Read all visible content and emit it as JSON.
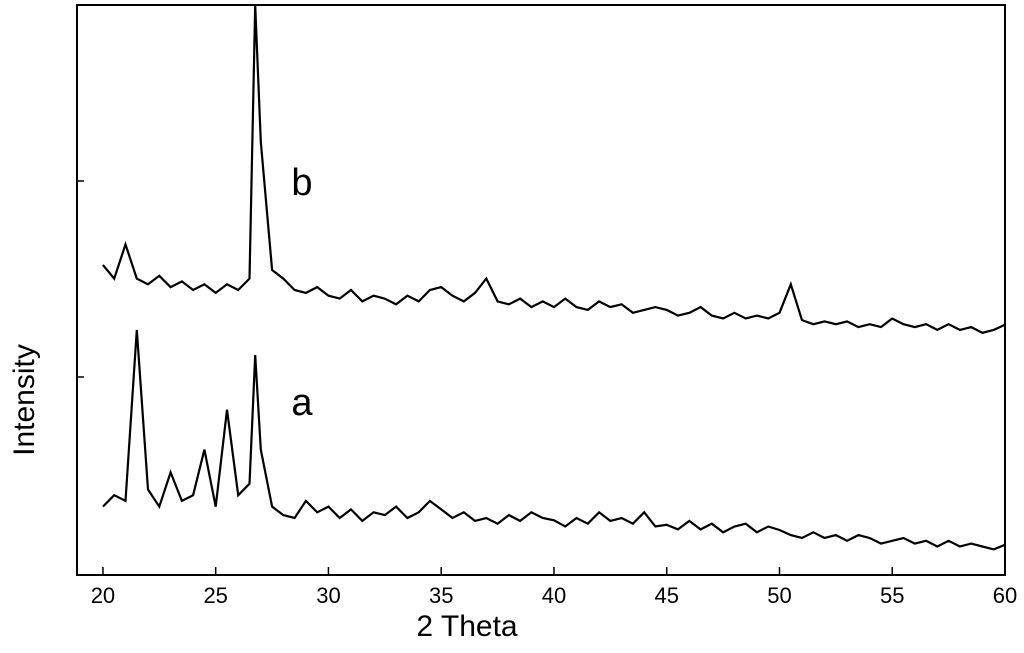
{
  "chart_data": {
    "type": "line",
    "x_label": "2 Theta",
    "y_label": "Intensity",
    "x": [
      20,
      20.5,
      21,
      21.5,
      22,
      22.5,
      23,
      23.5,
      24,
      24.5,
      25,
      25.5,
      26,
      26.5,
      26.75,
      27,
      27.5,
      28,
      28.5,
      29,
      29.5,
      30,
      30.5,
      31,
      31.5,
      32,
      32.5,
      33,
      33.5,
      34,
      34.5,
      35,
      35.5,
      36,
      36.5,
      37,
      37.5,
      38,
      38.5,
      39,
      39.5,
      40,
      40.5,
      41,
      41.5,
      42,
      42.5,
      43,
      43.5,
      44,
      44.5,
      45,
      45.5,
      46,
      46.5,
      47,
      47.5,
      48,
      48.5,
      49,
      49.5,
      50,
      50.5,
      51,
      51.5,
      52,
      52.5,
      53,
      53.5,
      54,
      54.5,
      55,
      55.5,
      56,
      56.5,
      57,
      57.5,
      58,
      58.5,
      59,
      59.5,
      60
    ],
    "series": [
      {
        "name": "a",
        "color": "#000000",
        "values": [
          12,
          14,
          13,
          43,
          15,
          12,
          18,
          13,
          14,
          22,
          12,
          29,
          14,
          16,
          38.6,
          22,
          12,
          10.5,
          10,
          13,
          11,
          12,
          10,
          11.5,
          9.5,
          11,
          10.5,
          12,
          10,
          11,
          13,
          11.5,
          10,
          11,
          9.5,
          10,
          9,
          10.5,
          9.5,
          11,
          10,
          9.6,
          8.5,
          10,
          9,
          11,
          9.5,
          10,
          9,
          11,
          8.5,
          8.8,
          8,
          9.5,
          8,
          9,
          7.5,
          8.5,
          9,
          7.5,
          8.5,
          7.9,
          7,
          6.5,
          7.5,
          6.5,
          7,
          6,
          7,
          6.5,
          5.5,
          6,
          6.5,
          5.5,
          6,
          5,
          6,
          5,
          5.5,
          5,
          4.5,
          5.3
        ]
      },
      {
        "name": "b",
        "color": "#000000",
        "values": [
          54.4,
          52,
          58,
          52,
          51,
          52.5,
          50.5,
          51.5,
          50,
          51,
          49.5,
          51,
          50,
          52,
          100,
          76,
          53.5,
          52,
          50,
          49.5,
          50.5,
          49,
          48.5,
          50,
          48,
          49,
          48.5,
          47.5,
          49,
          48,
          50,
          50.5,
          49,
          48,
          49.5,
          52,
          48,
          47.5,
          48.5,
          47,
          48,
          47,
          48.5,
          47,
          46.5,
          48,
          47,
          47.5,
          46,
          46.5,
          47,
          46.5,
          45.5,
          46,
          47,
          45.5,
          45,
          46,
          45,
          45.5,
          45,
          46,
          51,
          44.7,
          44,
          44.5,
          44,
          44.5,
          43.5,
          44,
          43.5,
          45,
          44,
          43.5,
          44,
          43,
          44,
          43,
          43.5,
          42.5,
          43,
          43.9
        ]
      }
    ],
    "xlim": [
      18.85,
      60
    ],
    "xticks": [
      20,
      25,
      30,
      35,
      40,
      45,
      50,
      55,
      60
    ],
    "ylim": [
      0,
      100
    ]
  }
}
